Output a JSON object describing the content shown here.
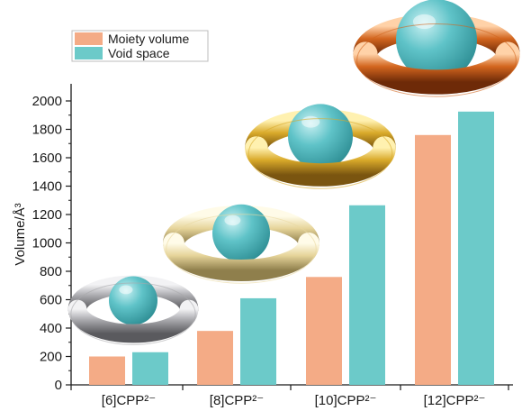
{
  "chart_data": {
    "type": "bar",
    "categories": [
      "[6]CPP²⁻",
      "[8]CPP²⁻",
      "[10]CPP²⁻",
      "[12]CPP²⁻"
    ],
    "series": [
      {
        "name": "Moiety volume",
        "color": "#f4ab86",
        "values": [
          200,
          380,
          760,
          1760
        ]
      },
      {
        "name": "Void space",
        "color": "#6ccac9",
        "values": [
          230,
          610,
          1265,
          1925
        ]
      }
    ],
    "ylabel": "Volume/Å³",
    "ylim": [
      0,
      2100
    ],
    "yticks": [
      0,
      200,
      400,
      600,
      800,
      1000,
      1200,
      1400,
      1600,
      1800,
      2000
    ],
    "grid": false,
    "legend": "top-left",
    "ring_colors": [
      "#a8a8ac",
      "#e9d9a0",
      "#d9aa2a",
      "#d2651e"
    ],
    "sphere_color": "#5fc3c8"
  }
}
